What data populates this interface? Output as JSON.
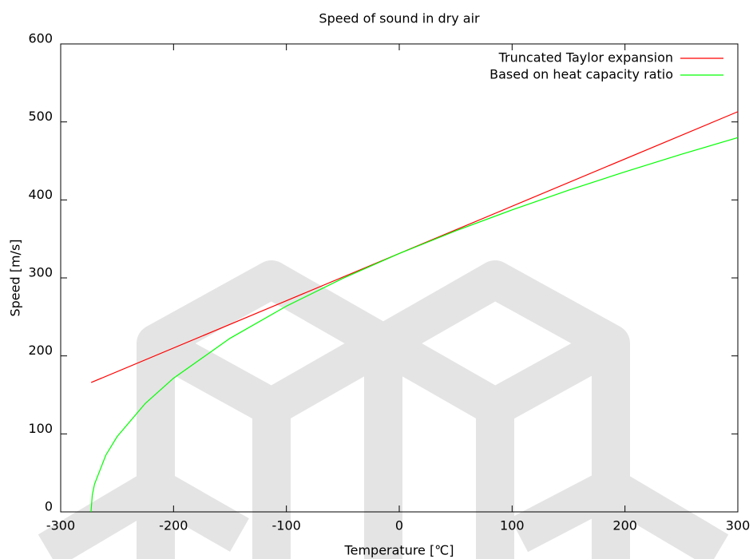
{
  "chart_data": {
    "type": "line",
    "title": "Speed of sound in dry air",
    "x_label": "Temperature [℃]",
    "y_label": "Speed [m/s]",
    "xlim": [
      -300,
      300
    ],
    "xticks": [
      -300,
      -200,
      -100,
      0,
      100,
      200,
      300
    ],
    "ylim": [
      0,
      600
    ],
    "yticks": [
      0,
      100,
      200,
      300,
      400,
      500,
      600
    ],
    "grid": false,
    "legend": "top-right",
    "series": [
      {
        "name": "Truncated Taylor expansion",
        "color": "#ff0000",
        "x": [
          -273,
          300
        ],
        "values": [
          165.9,
          513.1
        ]
      },
      {
        "name": "Based on heat capacity ratio",
        "color": "#00ff00",
        "x": [
          -273.15,
          -272,
          -270,
          -260,
          -250,
          -225,
          -200,
          -150,
          -100,
          -50,
          0,
          50,
          100,
          150,
          200,
          250,
          300
        ],
        "values": [
          0,
          21.5,
          35.6,
          72.7,
          96.5,
          139.1,
          171.4,
          222.5,
          263.8,
          299.4,
          331.3,
          360.3,
          387.2,
          412.4,
          436.0,
          458.5,
          479.9
        ]
      }
    ]
  }
}
